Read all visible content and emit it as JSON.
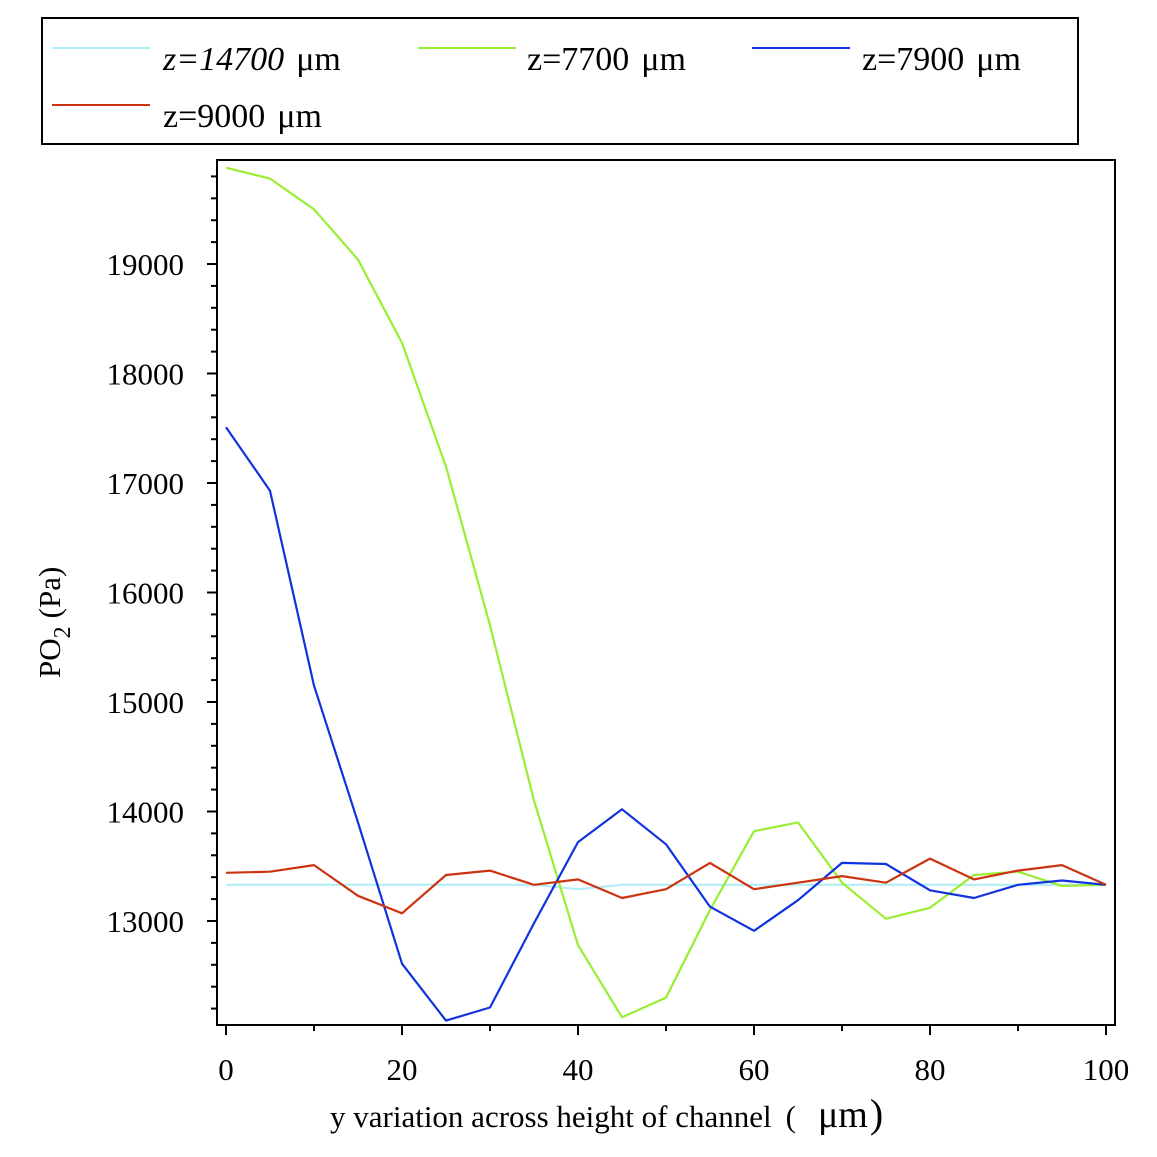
{
  "chart_data": {
    "type": "line",
    "xlabel": "y variation across height of channel",
    "xlabel_unit": "μm",
    "ylabel": "PO",
    "ylabel_sub": "2",
    "ylabel_unit": "(Pa)",
    "xlim": [
      0,
      100
    ],
    "ylim": [
      12050,
      19950
    ],
    "x_ticks": [
      0,
      20,
      40,
      60,
      80,
      100
    ],
    "y_ticks": [
      13000,
      14000,
      15000,
      16000,
      17000,
      18000,
      19000
    ],
    "x_tick_labels": [
      "0",
      "20",
      "40",
      "60",
      "80",
      "100"
    ],
    "y_tick_labels": [
      "13000",
      "14000",
      "15000",
      "16000",
      "17000",
      "18000",
      "19000"
    ],
    "x": [
      0,
      5,
      10,
      15,
      20,
      25,
      30,
      35,
      40,
      45,
      50,
      55,
      60,
      65,
      70,
      75,
      80,
      85,
      90,
      95,
      100
    ],
    "legend_position": "top",
    "series": [
      {
        "name": "z=14700",
        "unit": "μm",
        "color": "#b0eef8",
        "values": [
          13330,
          13330,
          13330,
          13330,
          13330,
          13330,
          13330,
          13330,
          13290,
          13330,
          13330,
          13330,
          13330,
          13330,
          13330,
          13330,
          13330,
          13330,
          13330,
          13330,
          13330
        ]
      },
      {
        "name": "z=7700",
        "unit": "μm",
        "color": "#99ee33",
        "values": [
          19880,
          19780,
          19500,
          19040,
          18280,
          17150,
          15700,
          14100,
          12780,
          12120,
          12300,
          13100,
          13820,
          13900,
          13350,
          13020,
          13120,
          13420,
          13450,
          13320,
          13330
        ]
      },
      {
        "name": "z=7900",
        "unit": "μm",
        "color": "#1133dd",
        "values": [
          17510,
          16930,
          15150,
          13900,
          12610,
          12090,
          12210,
          12980,
          13720,
          14020,
          13700,
          13130,
          12910,
          13190,
          13530,
          13520,
          13280,
          13210,
          13330,
          13370,
          13330
        ]
      },
      {
        "name": "z=9000",
        "unit": "μm",
        "color": "#cc3311",
        "values": [
          13440,
          13450,
          13510,
          13230,
          13070,
          13420,
          13460,
          13330,
          13380,
          13210,
          13290,
          13530,
          13290,
          13350,
          13410,
          13350,
          13570,
          13380,
          13460,
          13510,
          13330
        ]
      }
    ]
  }
}
